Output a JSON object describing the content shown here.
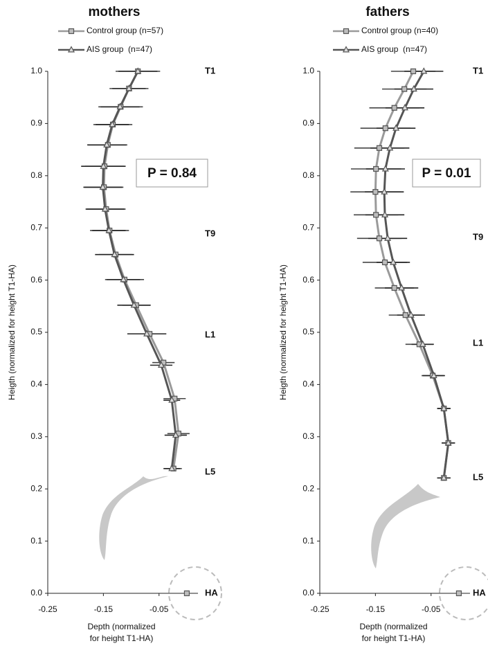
{
  "chart_data": [
    {
      "type": "profile",
      "title": "mothers",
      "x_label": [
        "Depth (normalized",
        "for height T1-HA)"
      ],
      "y_label": "Heigth (normalized for height T1-HA)",
      "xlim": [
        -0.25,
        0.02
      ],
      "ylim": [
        0,
        1
      ],
      "xticks": [
        -0.25,
        -0.15,
        -0.05
      ],
      "yticks": [
        {
          "value": 0,
          "label": "0.0"
        },
        0.1,
        0.2,
        0.3,
        0.4,
        0.5,
        0.6,
        0.7,
        0.8,
        0.9,
        {
          "value": 1,
          "label": "1.0"
        }
      ],
      "annotations": [
        "T1",
        "T9",
        "L1",
        "L5",
        "HA"
      ],
      "p_value": "P = 0.84",
      "series": [
        {
          "name": "Control group (n=57)",
          "color": "#9a9a9a",
          "marker": "square",
          "x": [
            -0.088,
            -0.104,
            -0.119,
            -0.133,
            -0.142,
            -0.148,
            -0.149,
            -0.145,
            -0.139,
            -0.128,
            -0.112,
            -0.091,
            -0.067,
            -0.042,
            -0.022,
            -0.015,
            -0.024,
            null,
            0
          ],
          "y": [
            1.0,
            0.967,
            0.932,
            0.898,
            0.859,
            0.818,
            0.778,
            0.736,
            0.695,
            0.649,
            0.601,
            0.552,
            0.497,
            0.442,
            0.373,
            0.306,
            0.239,
            null,
            0
          ],
          "xerr": [
            0.04,
            0.035,
            0.04,
            0.035,
            0.035,
            0.035,
            0.035,
            0.035,
            0.035,
            0.03,
            0.035,
            0.025,
            0.03,
            0.02,
            0.02,
            0.02,
            0.015,
            null,
            null
          ]
        },
        {
          "name": "AIS group  (n=47)",
          "color": "#555555",
          "marker": "triangle",
          "x": [
            -0.088,
            -0.104,
            -0.12,
            -0.134,
            -0.144,
            -0.15,
            -0.151,
            -0.147,
            -0.14,
            -0.13,
            -0.114,
            -0.095,
            -0.072,
            -0.046,
            -0.027,
            -0.02,
            -0.027
          ],
          "y": [
            1.0,
            0.967,
            0.932,
            0.898,
            0.859,
            0.818,
            0.778,
            0.736,
            0.695,
            0.649,
            0.601,
            0.552,
            0.497,
            0.437,
            0.37,
            0.303,
            0.239
          ],
          "xerr": [
            0.035,
            0.03,
            0.035,
            0.03,
            0.035,
            0.04,
            0.035,
            0.035,
            0.03,
            0.035,
            0.03,
            0.03,
            0.035,
            0.02,
            0.015,
            0.02,
            0.015
          ]
        }
      ]
    },
    {
      "type": "profile",
      "title": "fathers",
      "x_label": [
        "Depth (normalized",
        "for height T1-HA)"
      ],
      "y_label": "Heigth (normalized for height T1-HA)",
      "xlim": [
        -0.25,
        0.02
      ],
      "ylim": [
        0,
        1
      ],
      "xticks": [
        -0.25,
        -0.15,
        -0.05
      ],
      "yticks": [
        {
          "value": 0,
          "label": "0.0"
        },
        0.1,
        0.2,
        0.3,
        0.4,
        0.5,
        0.6,
        0.7,
        0.8,
        0.9,
        {
          "value": 1,
          "label": "1.0"
        }
      ],
      "annotations": [
        "T1",
        "T9",
        "L1",
        "L5",
        "HA"
      ],
      "p_value": "P = 0.01",
      "series": [
        {
          "name": "Control group (n=40)",
          "color": "#9a9a9a",
          "marker": "square",
          "x": [
            -0.082,
            -0.098,
            -0.116,
            -0.132,
            -0.143,
            -0.149,
            -0.15,
            -0.149,
            -0.143,
            -0.133,
            -0.116,
            -0.096,
            -0.071,
            -0.047,
            -0.027,
            -0.019,
            -0.027,
            null,
            0
          ],
          "y": [
            1.0,
            0.966,
            0.93,
            0.891,
            0.853,
            0.813,
            0.769,
            0.725,
            0.68,
            0.634,
            0.585,
            0.533,
            0.477,
            0.417,
            0.354,
            0.288,
            0.221,
            null,
            0
          ],
          "xerr": [
            0.04,
            0.04,
            0.045,
            0.045,
            0.045,
            0.045,
            0.045,
            0.04,
            0.04,
            0.04,
            0.035,
            0.03,
            0.025,
            0.02,
            0.012,
            0.012,
            0.012,
            null,
            null
          ]
        },
        {
          "name": "AIS group  (n=47)",
          "color": "#555555",
          "marker": "triangle",
          "x": [
            -0.063,
            -0.081,
            -0.097,
            -0.113,
            -0.124,
            -0.132,
            -0.134,
            -0.133,
            -0.128,
            -0.118,
            -0.103,
            -0.086,
            -0.065,
            -0.045,
            -0.027,
            -0.019,
            -0.027
          ],
          "y": [
            1.0,
            0.966,
            0.93,
            0.891,
            0.853,
            0.813,
            0.769,
            0.725,
            0.68,
            0.634,
            0.585,
            0.533,
            0.477,
            0.417,
            0.354,
            0.288,
            0.221
          ],
          "xerr": [
            0.035,
            0.035,
            0.035,
            0.035,
            0.035,
            0.035,
            0.035,
            0.035,
            0.035,
            0.03,
            0.03,
            0.025,
            0.02,
            0.02,
            0.012,
            0.012,
            0.012
          ]
        }
      ]
    }
  ]
}
